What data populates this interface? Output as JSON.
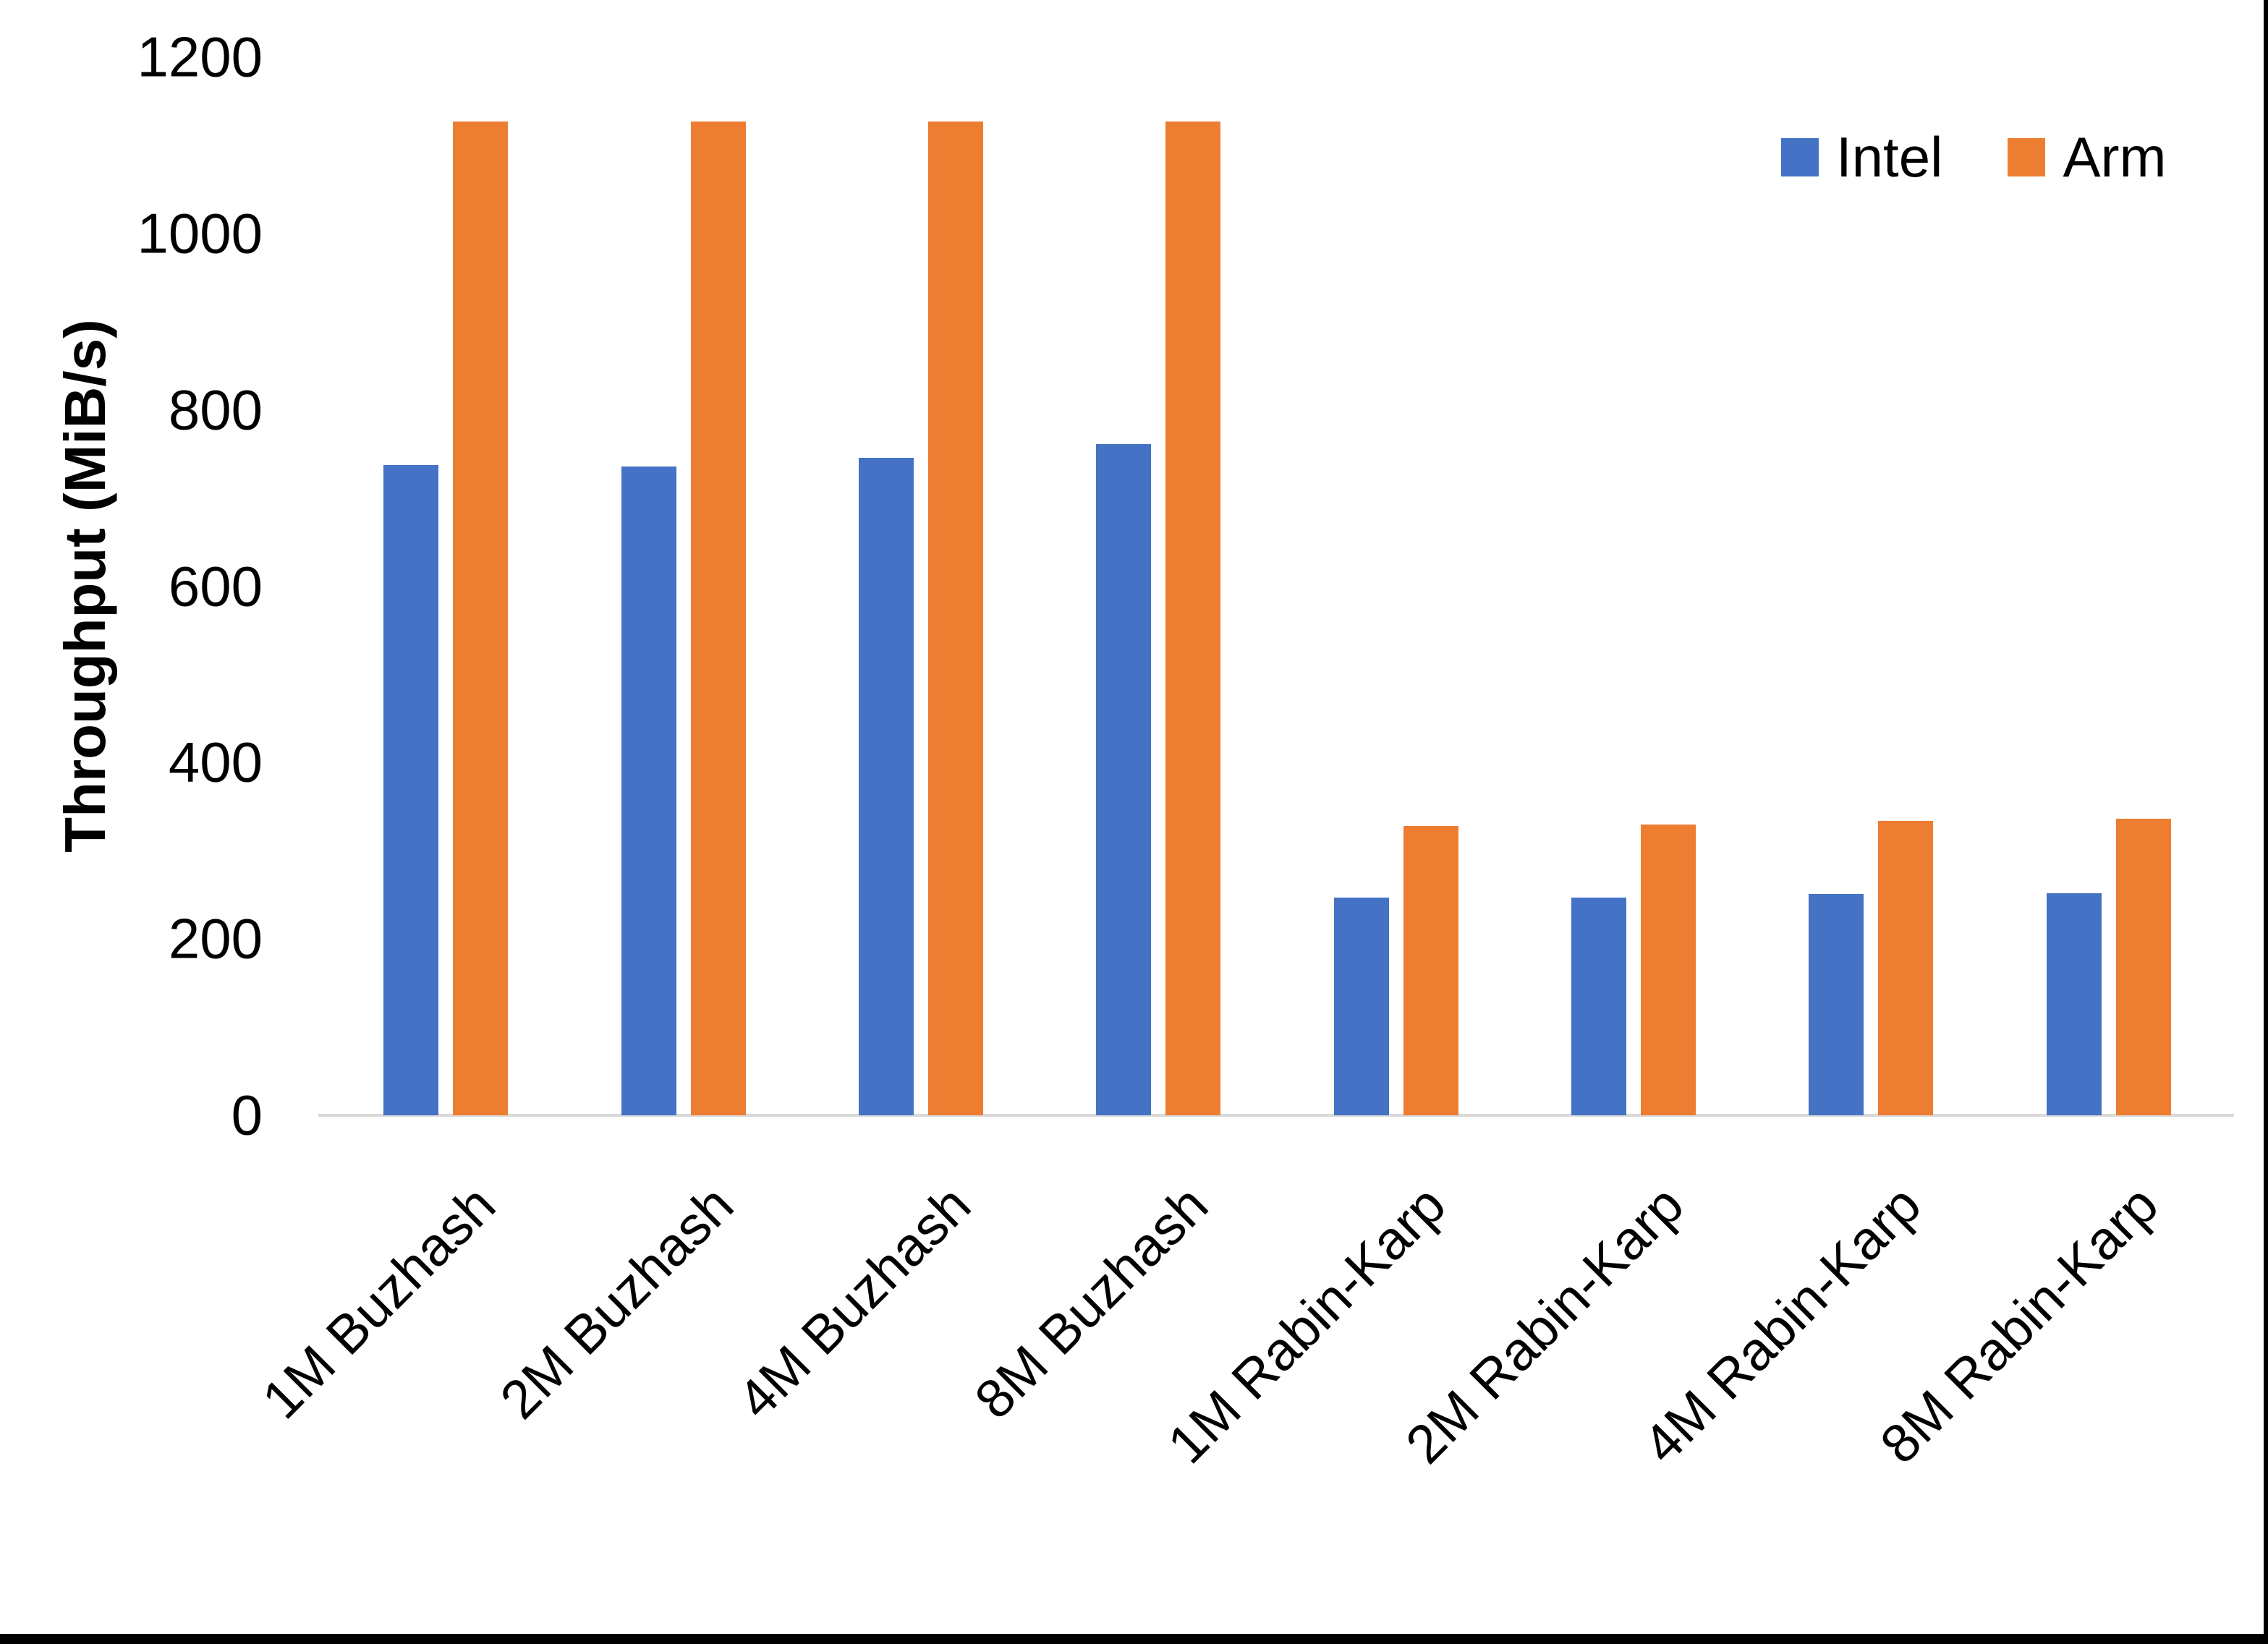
{
  "chart_data": {
    "type": "bar",
    "title": "",
    "xlabel": "",
    "ylabel": "Throughput (MiB/s)",
    "ylim": [
      0,
      1200
    ],
    "yticks": [
      0,
      200,
      400,
      600,
      800,
      1000,
      1200
    ],
    "grid": false,
    "legend_position": "top-right",
    "categories": [
      "1M Buzhash",
      "2M Buzhash",
      "4M Buzhash",
      "8M Buzhash",
      "1M Rabin-Karp",
      "2M Rabin-Karp",
      "4M Rabin-Karp",
      "8M Rabin-Karp"
    ],
    "series": [
      {
        "name": "Intel",
        "color": "#4472C4",
        "values": [
          737,
          736,
          746,
          761,
          247,
          247,
          251,
          252
        ]
      },
      {
        "name": "Arm",
        "color": "#ED7D31",
        "values": [
          1127,
          1127,
          1127,
          1127,
          328,
          330,
          334,
          336
        ]
      }
    ]
  }
}
